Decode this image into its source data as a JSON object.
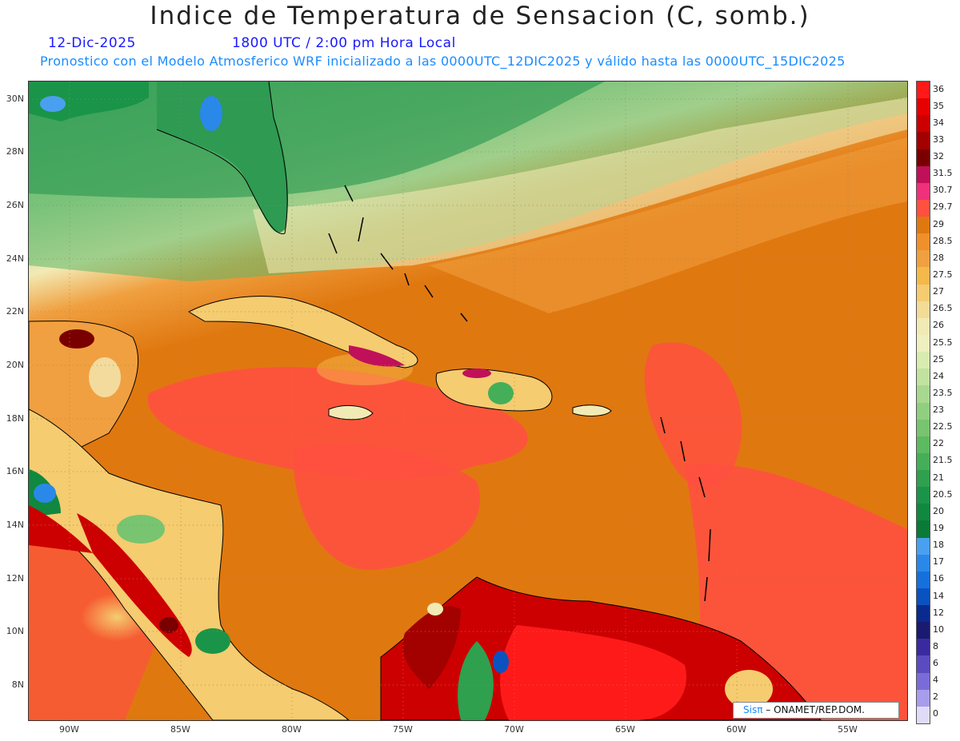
{
  "title": "Indice de Temperatura de Sensacion (C, somb.)",
  "date_label": "12-Dic-2025",
  "time_label": "1800 UTC / 2:00 pm Hora Local",
  "forecast_label": "Pronostico con el Modelo Atmosferico WRF inicializado a las 0000UTC_12DIC2025 y válido hasta las  0000UTC_15DIC2025",
  "lat_labels": [
    "30N",
    "28N",
    "26N",
    "24N",
    "22N",
    "20N",
    "18N",
    "16N",
    "14N",
    "12N",
    "10N",
    "8N"
  ],
  "lon_labels": [
    "90W",
    "85W",
    "80W",
    "75W",
    "70W",
    "65W",
    "60W",
    "55W"
  ],
  "legend": {
    "values": [
      "36",
      "35",
      "34",
      "33",
      "32",
      "31.5",
      "30.7",
      "29.7",
      "29",
      "28.5",
      "28",
      "27.5",
      "27",
      "26.5",
      "26",
      "25.5",
      "25",
      "24",
      "23.5",
      "23",
      "22.5",
      "22",
      "21.5",
      "21",
      "20.5",
      "20",
      "19",
      "18",
      "17",
      "16",
      "14",
      "12",
      "10",
      "8",
      "6",
      "4",
      "2",
      "0"
    ],
    "colors": [
      "#ff1a1a",
      "#e60000",
      "#cc0000",
      "#a30000",
      "#7a0000",
      "#c0105a",
      "#f0307a",
      "#ff5040",
      "#e07810",
      "#f0902a",
      "#f0a040",
      "#f5b84a",
      "#f5cc70",
      "#f2dc96",
      "#f2eab4",
      "#eef0c0",
      "#d8ecb0",
      "#c2e2a0",
      "#a8d890",
      "#90cf80",
      "#78c470",
      "#5cba60",
      "#44af58",
      "#2ea04e",
      "#1a9448",
      "#108840",
      "#0a7a38",
      "#4aa0f0",
      "#2a88e8",
      "#1670dc",
      "#0a52c0",
      "#0a2a90",
      "#1a1a70",
      "#3a2aa0",
      "#5a4cc0",
      "#7a6cd8",
      "#a89cec",
      "#e0dcf8"
    ]
  },
  "credit": {
    "brand": "Sisπ",
    "text": "– ONAMET/REP.DOM."
  },
  "colors": {
    "sea_main": "#ff5040",
    "sea_orange": "#e07810",
    "land_green": "#108840",
    "hot": "#a30000",
    "title_blue": "#1a1aff",
    "sub_blue": "#1a8cff"
  }
}
